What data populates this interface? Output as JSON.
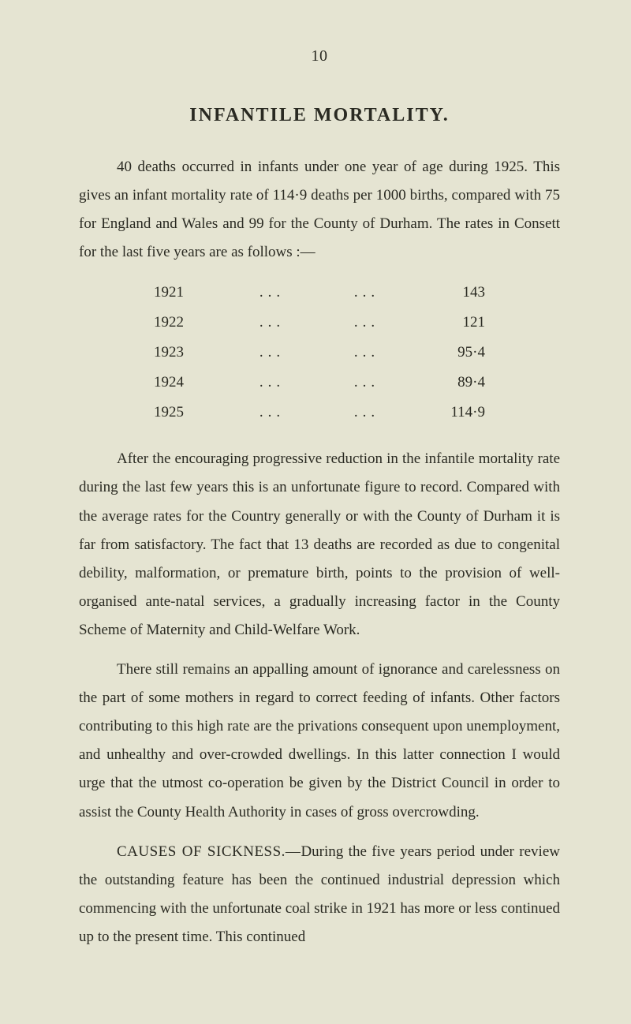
{
  "page_number": "10",
  "title": "INFANTILE MORTALITY.",
  "para1": "40 deaths occurred in infants under one year of age during 1925. This gives an infant mortality rate of 114·9 deaths per 1000 births, compared with 75 for England and Wales and 99 for the County of Durham.  The rates in Consett for the last five years are as follows :—",
  "table": {
    "rows": [
      {
        "year": "1921",
        "dots1": "...",
        "dots2": "...",
        "value": "143"
      },
      {
        "year": "1922",
        "dots1": "...",
        "dots2": "...",
        "value": "121"
      },
      {
        "year": "1923",
        "dots1": "...",
        "dots2": "...",
        "value": "95·4"
      },
      {
        "year": "1924",
        "dots1": "...",
        "dots2": "...",
        "value": "89·4"
      },
      {
        "year": "1925",
        "dots1": "...",
        "dots2": "...",
        "value": "114·9"
      }
    ]
  },
  "para2": "After the encouraging progressive reduction in the infantile mortality rate during the last few years this is an unfortunate figure to record.  Compared with the average rates for the Country generally or with the County of Durham it is far from satisfactory.  The fact that 13 deaths are recorded as due to congenital debility, malformation, or premature birth, points to the provision of well-organised ante-natal services, a gradually increasing factor in the County Scheme of Maternity and Child-Welfare Work.",
  "para3": "There still remains an appalling amount of ignorance and carelessness on the part of some mothers in regard to correct feeding of infants.  Other factors contributing to this high rate are the privations consequent upon unemployment, and unhealthy and over-crowded dwellings.  In this latter connection I would urge that the utmost co-operation be given by the District Council in order to assist the County Health Authority in cases of gross overcrowding.",
  "para4_lead": "CAUSES OF SICKNESS.—",
  "para4_rest": "During the five years period under review the outstanding feature has been the continued industrial depression which commencing with the unfortunate coal strike in 1921 has more or less continued up to the present time.  This continued"
}
